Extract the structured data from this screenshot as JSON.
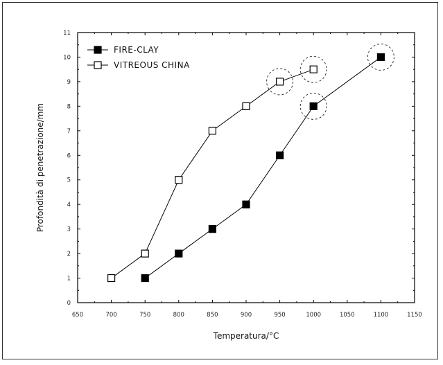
{
  "chart_data": {
    "type": "line",
    "title": "",
    "xlabel": "Temperatura/°C",
    "ylabel": "Profondità di penetrazione/mm",
    "xlim": [
      650,
      1150
    ],
    "ylim": [
      0,
      11
    ],
    "x_ticks": [
      "650",
      "700",
      "750",
      "800",
      "850",
      "900",
      "950",
      "1000",
      "1050",
      "1100",
      "1150"
    ],
    "y_ticks": [
      "0",
      "1",
      "2",
      "3",
      "4",
      "5",
      "6",
      "7",
      "8",
      "9",
      "10",
      "11"
    ],
    "legend_position": "top-left",
    "grid": false,
    "series": [
      {
        "name": "FIRE-CLAY",
        "marker": "filled-square",
        "color": "#000000",
        "points": [
          [
            750,
            1
          ],
          [
            800,
            2
          ],
          [
            850,
            3
          ],
          [
            900,
            4
          ],
          [
            950,
            6
          ],
          [
            1000,
            8
          ],
          [
            1100,
            10
          ]
        ]
      },
      {
        "name": "VITREOUS CHINA",
        "marker": "open-square",
        "color": "#000000",
        "points": [
          [
            700,
            1
          ],
          [
            750,
            2
          ],
          [
            800,
            5
          ],
          [
            850,
            7
          ],
          [
            900,
            8
          ],
          [
            950,
            9
          ],
          [
            1000,
            9.5
          ]
        ]
      }
    ],
    "annotations": {
      "type": "dashed-circle",
      "highlighted_points": [
        [
          950,
          9
        ],
        [
          1000,
          9.5
        ],
        [
          1000,
          8
        ],
        [
          1100,
          10
        ]
      ]
    }
  }
}
